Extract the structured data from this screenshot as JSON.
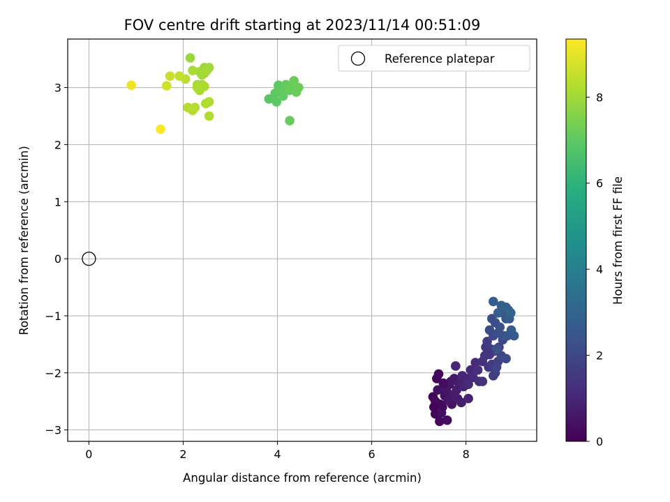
{
  "chart_data": {
    "type": "scatter",
    "title": "FOV centre drift starting at 2023/11/14 00:51:09",
    "xlabel": "Angular distance from reference (arcmin)",
    "ylabel": "Rotation from reference (arcmin)",
    "xlim": [
      -0.45,
      9.5
    ],
    "ylim": [
      -3.2,
      3.85
    ],
    "x_ticks": [
      0,
      2,
      4,
      6,
      8
    ],
    "y_ticks": [
      -3,
      -2,
      -1,
      0,
      1,
      2,
      3
    ],
    "x_tick_labels": [
      "0",
      "2",
      "4",
      "6",
      "8"
    ],
    "y_tick_labels": [
      "−3",
      "−2",
      "−1",
      "0",
      "1",
      "2",
      "3"
    ],
    "grid": true,
    "legend": {
      "location": "top-right",
      "entries": [
        "Reference platepar"
      ]
    },
    "reference_point": {
      "x": 0,
      "y": 0,
      "marker": "open-circle",
      "color": "#000000"
    },
    "colorbar": {
      "label": "Hours from first FF file",
      "range": [
        0,
        9.35
      ],
      "ticks": [
        0,
        2,
        4,
        6,
        8
      ],
      "tick_labels": [
        "0",
        "2",
        "4",
        "6",
        "8"
      ],
      "colormap": "viridis"
    },
    "points": [
      [
        7.3,
        -2.42,
        0.08
      ],
      [
        7.38,
        -2.1,
        0.12
      ],
      [
        7.42,
        -2.02,
        0.18
      ],
      [
        7.35,
        -2.72,
        0.1
      ],
      [
        7.44,
        -2.85,
        0.2
      ],
      [
        7.5,
        -2.6,
        0.28
      ],
      [
        7.6,
        -2.83,
        0.3
      ],
      [
        7.55,
        -2.4,
        0.35
      ],
      [
        7.4,
        -2.3,
        0.4
      ],
      [
        7.65,
        -2.2,
        0.45
      ],
      [
        7.7,
        -2.55,
        0.5
      ],
      [
        7.48,
        -2.7,
        0.38
      ],
      [
        7.35,
        -2.5,
        0.22
      ],
      [
        7.58,
        -2.3,
        0.55
      ],
      [
        7.62,
        -2.48,
        0.6
      ],
      [
        7.75,
        -2.1,
        0.65
      ],
      [
        7.8,
        -2.3,
        0.72
      ],
      [
        7.85,
        -2.18,
        0.78
      ],
      [
        7.9,
        -2.52,
        0.82
      ],
      [
        7.72,
        -2.38,
        0.7
      ],
      [
        7.95,
        -2.24,
        0.9
      ],
      [
        7.68,
        -2.15,
        0.62
      ],
      [
        7.78,
        -1.88,
        0.95
      ],
      [
        8.02,
        -2.1,
        1.0
      ],
      [
        8.1,
        -1.95,
        1.05
      ],
      [
        8.15,
        -2.08,
        1.1
      ],
      [
        8.2,
        -1.82,
        1.15
      ],
      [
        8.28,
        -2.15,
        1.2
      ],
      [
        8.05,
        -2.2,
        1.08
      ],
      [
        7.92,
        -2.05,
        0.98
      ],
      [
        8.25,
        -1.95,
        1.25
      ],
      [
        8.35,
        -1.8,
        1.32
      ],
      [
        8.4,
        -1.7,
        1.4
      ],
      [
        8.42,
        -1.55,
        1.48
      ],
      [
        8.48,
        -1.9,
        1.5
      ],
      [
        8.5,
        -1.68,
        1.55
      ],
      [
        8.55,
        -1.85,
        1.6
      ],
      [
        8.58,
        -2.05,
        1.65
      ],
      [
        8.62,
        -2.0,
        1.72
      ],
      [
        8.68,
        -1.8,
        1.78
      ],
      [
        8.45,
        -1.45,
        1.62
      ],
      [
        8.52,
        -1.58,
        1.7
      ],
      [
        8.6,
        -1.62,
        1.82
      ],
      [
        8.65,
        -1.9,
        1.86
      ],
      [
        8.7,
        -1.55,
        1.9
      ],
      [
        8.75,
        -1.7,
        1.95
      ],
      [
        8.78,
        -1.42,
        2.0
      ],
      [
        8.58,
        -1.35,
        2.05
      ],
      [
        8.85,
        -1.75,
        2.05
      ],
      [
        8.5,
        -1.25,
        2.1
      ],
      [
        8.55,
        -1.05,
        2.15
      ],
      [
        8.62,
        -1.12,
        2.2
      ],
      [
        8.68,
        -1.3,
        2.25
      ],
      [
        8.72,
        -1.2,
        2.3
      ],
      [
        8.8,
        -1.35,
        2.35
      ],
      [
        8.65,
        -1.58,
        2.38
      ],
      [
        8.78,
        -0.95,
        2.45
      ],
      [
        8.85,
        -1.05,
        2.5
      ],
      [
        8.9,
        -0.9,
        2.6
      ],
      [
        8.92,
        -1.05,
        2.65
      ],
      [
        8.96,
        -1.25,
        2.7
      ],
      [
        9.02,
        -1.35,
        2.75
      ],
      [
        8.58,
        -0.75,
        2.8
      ],
      [
        8.68,
        -0.95,
        2.82
      ],
      [
        8.75,
        -0.82,
        2.9
      ],
      [
        8.85,
        -0.85,
        2.95
      ],
      [
        8.95,
        -0.95,
        3.0
      ],
      [
        8.88,
        -1.35,
        2.55
      ],
      [
        8.48,
        -1.65,
        1.45
      ],
      [
        8.35,
        -2.15,
        1.28
      ],
      [
        8.05,
        -2.45,
        0.92
      ],
      [
        7.82,
        -2.45,
        0.75
      ],
      [
        7.52,
        -2.18,
        0.32
      ],
      [
        7.45,
        -2.55,
        0.25
      ],
      [
        7.32,
        -2.6,
        0.05
      ],
      [
        3.82,
        2.8,
        6.9
      ],
      [
        3.95,
        2.9,
        6.95
      ],
      [
        4.02,
        3.04,
        7.0
      ],
      [
        4.08,
        2.95,
        7.05
      ],
      [
        4.12,
        2.85,
        7.05
      ],
      [
        4.18,
        3.05,
        7.1
      ],
      [
        4.25,
        2.95,
        7.15
      ],
      [
        4.3,
        3.05,
        7.15
      ],
      [
        4.35,
        3.12,
        7.2
      ],
      [
        4.4,
        2.95,
        7.2
      ],
      [
        4.45,
        3.0,
        7.25
      ],
      [
        4.02,
        2.95,
        7.02
      ],
      [
        3.98,
        2.75,
        6.98
      ],
      [
        4.26,
        2.42,
        7.12
      ],
      [
        4.4,
        2.92,
        7.22
      ],
      [
        2.15,
        3.52,
        7.9
      ],
      [
        2.45,
        3.35,
        7.95
      ],
      [
        2.5,
        3.3,
        7.95
      ],
      [
        2.55,
        3.35,
        8.0
      ],
      [
        2.35,
        3.28,
        8.0
      ],
      [
        2.4,
        3.22,
        8.05
      ],
      [
        2.45,
        3.25,
        8.05
      ],
      [
        2.2,
        3.3,
        8.1
      ],
      [
        2.3,
        3.05,
        8.1
      ],
      [
        2.4,
        3.05,
        8.12
      ],
      [
        2.45,
        3.02,
        8.15
      ],
      [
        2.35,
        2.95,
        8.15
      ],
      [
        2.3,
        3.0,
        8.18
      ],
      [
        2.55,
        2.75,
        8.2
      ],
      [
        2.48,
        2.72,
        8.22
      ],
      [
        2.55,
        2.5,
        8.22
      ],
      [
        2.1,
        2.65,
        8.25
      ],
      [
        2.2,
        2.6,
        8.28
      ],
      [
        2.25,
        2.65,
        8.3
      ],
      [
        2.05,
        3.15,
        8.4
      ],
      [
        1.92,
        3.2,
        8.5
      ],
      [
        1.72,
        3.2,
        8.6
      ],
      [
        1.65,
        3.03,
        8.7
      ],
      [
        0.9,
        3.04,
        9.1
      ],
      [
        1.52,
        2.27,
        9.3
      ]
    ]
  }
}
